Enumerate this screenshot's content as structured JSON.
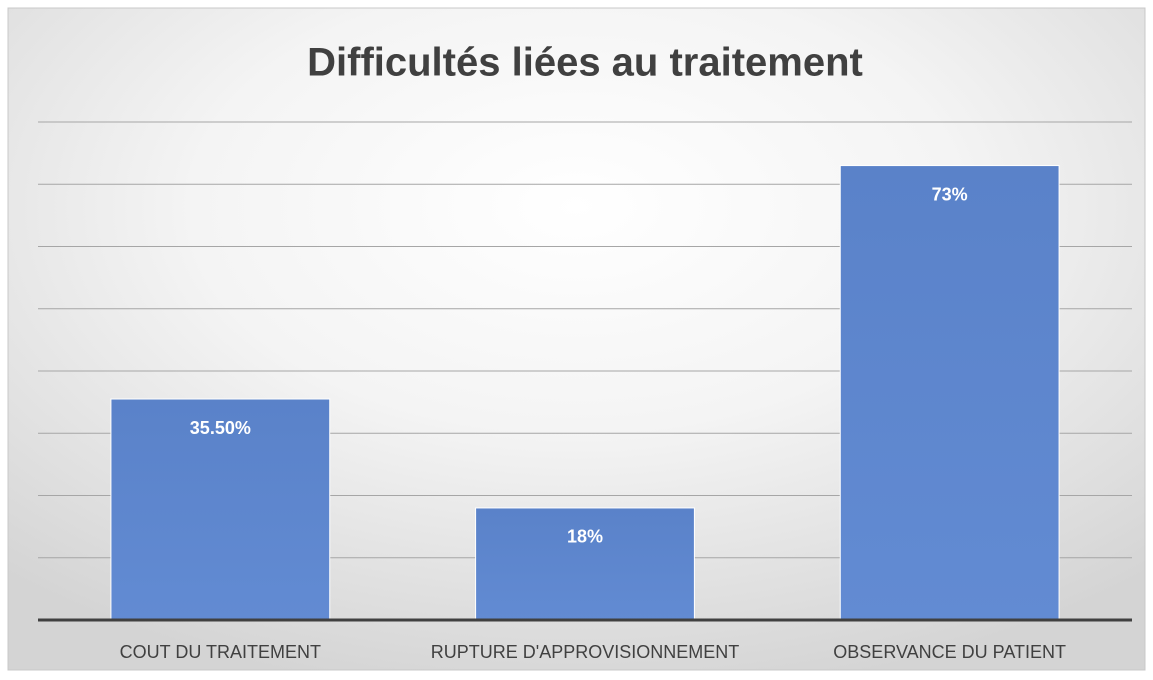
{
  "chart_data": {
    "type": "bar",
    "title": "Difficultés liées au traitement",
    "categories": [
      "COUT DU TRAITEMENT",
      "RUPTURE D'APPROVISIONNEMENT",
      "OBSERVANCE DU PATIENT"
    ],
    "values": [
      35.5,
      18,
      73
    ],
    "value_labels": [
      "35.50%",
      "18%",
      "73%"
    ],
    "color": "#4472c4",
    "ylim": [
      0,
      80
    ],
    "yticks": [
      0,
      10,
      20,
      30,
      40,
      50,
      60,
      70,
      80
    ],
    "grid": true
  }
}
